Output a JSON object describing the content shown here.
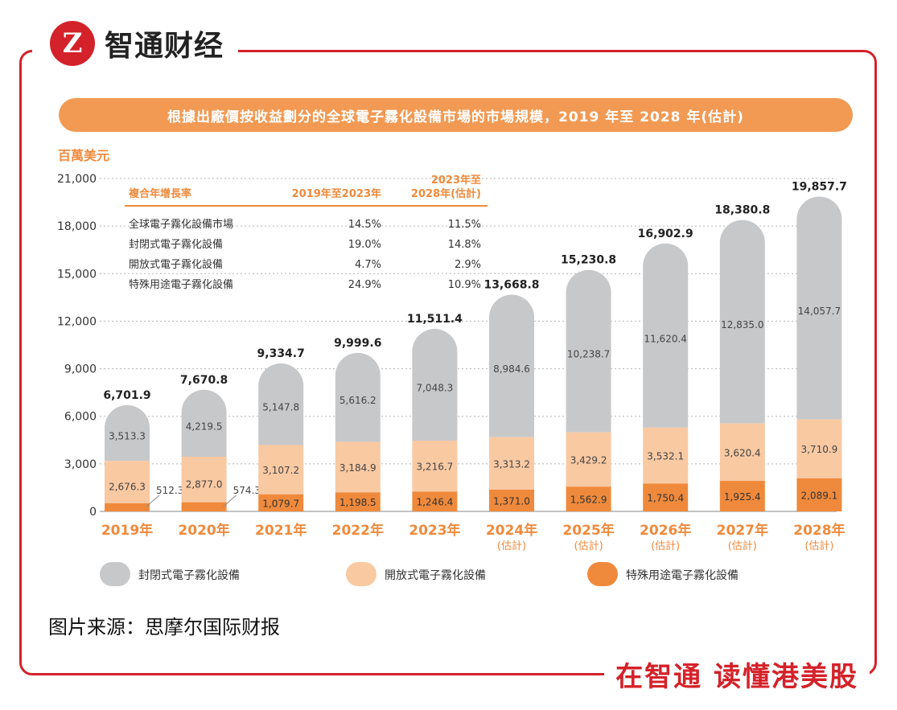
{
  "brand": {
    "name": "智通财经",
    "slogan": "在智通 读懂港美股",
    "logo_glyph": "Z"
  },
  "source": "图片来源：思摩尔国际财报",
  "colors": {
    "red": "#d4222a",
    "orange": "#ef8a3c",
    "closed": "#c7c8ca",
    "open": "#f9c9a2",
    "special": "#ef8a3c"
  },
  "chart_data": {
    "type": "bar",
    "title": "根據出廠價按收益劃分的全球電子霧化設備市場的市場規模，2019 年至 2028 年(估計)",
    "ylabel": "百萬美元",
    "ylim": [
      0,
      21000
    ],
    "yticks": [
      "0",
      "3,000",
      "6,000",
      "9,000",
      "12,000",
      "15,000",
      "18,000",
      "21,000"
    ],
    "categories": [
      "2019年",
      "2020年",
      "2021年",
      "2022年",
      "2023年",
      "2024年",
      "2025年",
      "2026年",
      "2027年",
      "2028年"
    ],
    "estimate_label": "(估計)",
    "estimated_flags": [
      false,
      false,
      false,
      false,
      false,
      true,
      true,
      true,
      true,
      true
    ],
    "totals": [
      6701.9,
      7670.8,
      9334.7,
      9999.6,
      11511.4,
      13668.8,
      15230.8,
      16902.9,
      18380.8,
      19857.7
    ],
    "total_labels": [
      "6,701.9",
      "7,670.8",
      "9,334.7",
      "9,999.6",
      "11,511.4",
      "13,668.8",
      "15,230.8",
      "16,902.9",
      "18,380.8",
      "19,857.7"
    ],
    "series": [
      {
        "name": "特殊用途電子霧化設備",
        "values": [
          512.3,
          574.3,
          1079.7,
          1198.5,
          1246.4,
          1371.0,
          1562.9,
          1750.4,
          1925.4,
          2089.1
        ],
        "labels": [
          "512.3",
          "574.3",
          "1,079.7",
          "1,198.5",
          "1,246.4",
          "1,371.0",
          "1,562.9",
          "1,750.4",
          "1,925.4",
          "2,089.1"
        ]
      },
      {
        "name": "開放式電子霧化設備",
        "values": [
          2676.3,
          2877.0,
          3107.2,
          3184.9,
          3216.7,
          3313.2,
          3429.2,
          3532.1,
          3620.4,
          3710.9
        ],
        "labels": [
          "2,676.3",
          "2,877.0",
          "3,107.2",
          "3,184.9",
          "3,216.7",
          "3,313.2",
          "3,429.2",
          "3,532.1",
          "3,620.4",
          "3,710.9"
        ]
      },
      {
        "name": "封閉式電子霧化設備",
        "values": [
          3513.3,
          4219.5,
          5147.8,
          5616.2,
          7048.3,
          8984.6,
          10238.7,
          11620.4,
          12835.0,
          14057.7
        ],
        "labels": [
          "3,513.3",
          "4,219.5",
          "5,147.8",
          "5,616.2",
          "7,048.3",
          "8,984.6",
          "10,238.7",
          "11,620.4",
          "12,835.0",
          "14,057.7"
        ]
      }
    ],
    "legend": [
      "封閉式電子霧化設備",
      "開放式電子霧化設備",
      "特殊用途電子霧化設備"
    ],
    "cagr_table": {
      "header": [
        "複合年增長率",
        "2019年至2023年",
        "2023年至",
        "2028年(估計)"
      ],
      "rows": [
        [
          "全球電子霧化設備市場",
          "14.5%",
          "11.5%"
        ],
        [
          "封閉式電子霧化設備",
          "19.0%",
          "14.8%"
        ],
        [
          "開放式電子霧化設備",
          "4.7%",
          "2.9%"
        ],
        [
          "特殊用途電子霧化設備",
          "24.9%",
          "10.9%"
        ]
      ]
    }
  }
}
